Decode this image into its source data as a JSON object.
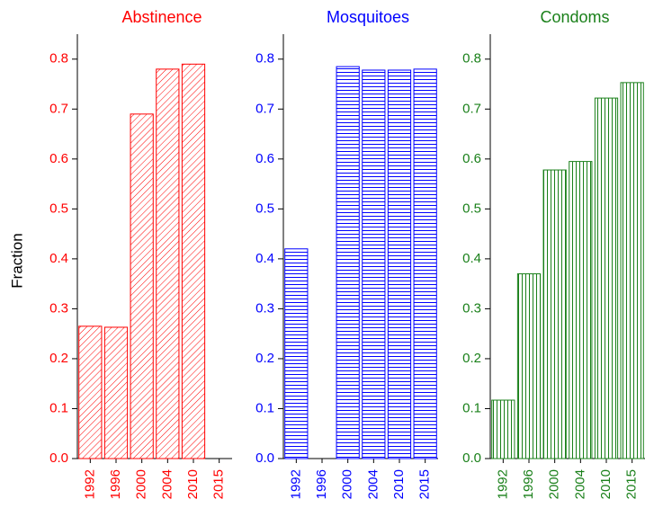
{
  "chart_data": [
    {
      "type": "bar",
      "title": "Abstinence",
      "y_label": "Fraction",
      "color": "#ff0000",
      "hatch": "diagonal",
      "categories": [
        "1992",
        "1996",
        "2000",
        "2004",
        "2010",
        "2015"
      ],
      "values": [
        0.265,
        0.263,
        0.69,
        0.78,
        0.79,
        null
      ],
      "ylim": [
        0,
        0.85
      ],
      "yticks": [
        {
          "value": 0,
          "label": "0.0"
        },
        0.1,
        0.2,
        0.3,
        0.4,
        0.5,
        0.6,
        0.7,
        0.8
      ]
    },
    {
      "type": "bar",
      "title": "Mosquitoes",
      "color": "#0000ff",
      "hatch": "horizontal",
      "categories": [
        "1992",
        "1996",
        "2000",
        "2004",
        "2010",
        "2015"
      ],
      "values": [
        0.42,
        null,
        0.785,
        0.778,
        0.778,
        0.78
      ],
      "ylim": [
        0,
        0.85
      ],
      "yticks": [
        {
          "value": 0,
          "label": "0.0"
        },
        0.1,
        0.2,
        0.3,
        0.4,
        0.5,
        0.6,
        0.7,
        0.8
      ]
    },
    {
      "type": "bar",
      "title": "Condoms",
      "color": "#1a801a",
      "hatch": "vertical",
      "categories": [
        "1992",
        "1996",
        "2000",
        "2004",
        "2010",
        "2015"
      ],
      "values": [
        0.117,
        0.37,
        0.578,
        0.595,
        0.722,
        0.753
      ],
      "ylim": [
        0,
        0.85
      ],
      "yticks": [
        {
          "value": 0,
          "label": "0.0"
        },
        0.1,
        0.2,
        0.3,
        0.4,
        0.5,
        0.6,
        0.7,
        0.8
      ]
    }
  ]
}
